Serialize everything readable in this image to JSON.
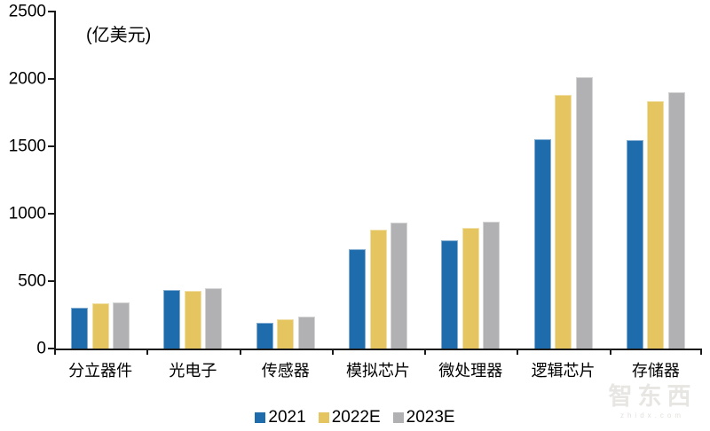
{
  "chart_data": {
    "type": "bar",
    "title": "",
    "unit_label": "(亿美元)",
    "xlabel": "",
    "ylabel": "亿美元",
    "categories": [
      "分立器件",
      "光电子",
      "传感器",
      "模拟芯片",
      "微处理器",
      "逻辑芯片",
      "存储器"
    ],
    "series": [
      {
        "name": "2021",
        "color": "#1e6cab",
        "values": [
          300,
          435,
          190,
          740,
          805,
          1555,
          1545
        ]
      },
      {
        "name": "2022E",
        "color": "#e4c55f",
        "values": [
          335,
          430,
          220,
          885,
          895,
          1880,
          1835
        ]
      },
      {
        "name": "2023E",
        "color": "#b1b1b3",
        "values": [
          345,
          450,
          235,
          935,
          940,
          2015,
          1900
        ]
      }
    ],
    "ylim": [
      0,
      2500
    ],
    "yticks": [
      0,
      500,
      1000,
      1500,
      2000,
      2500
    ],
    "grid": false,
    "legend_position": "bottom",
    "axis_color": "#1a1a1a"
  },
  "watermark": {
    "logo_text": "智东西",
    "subtext": "zhidx.com"
  }
}
